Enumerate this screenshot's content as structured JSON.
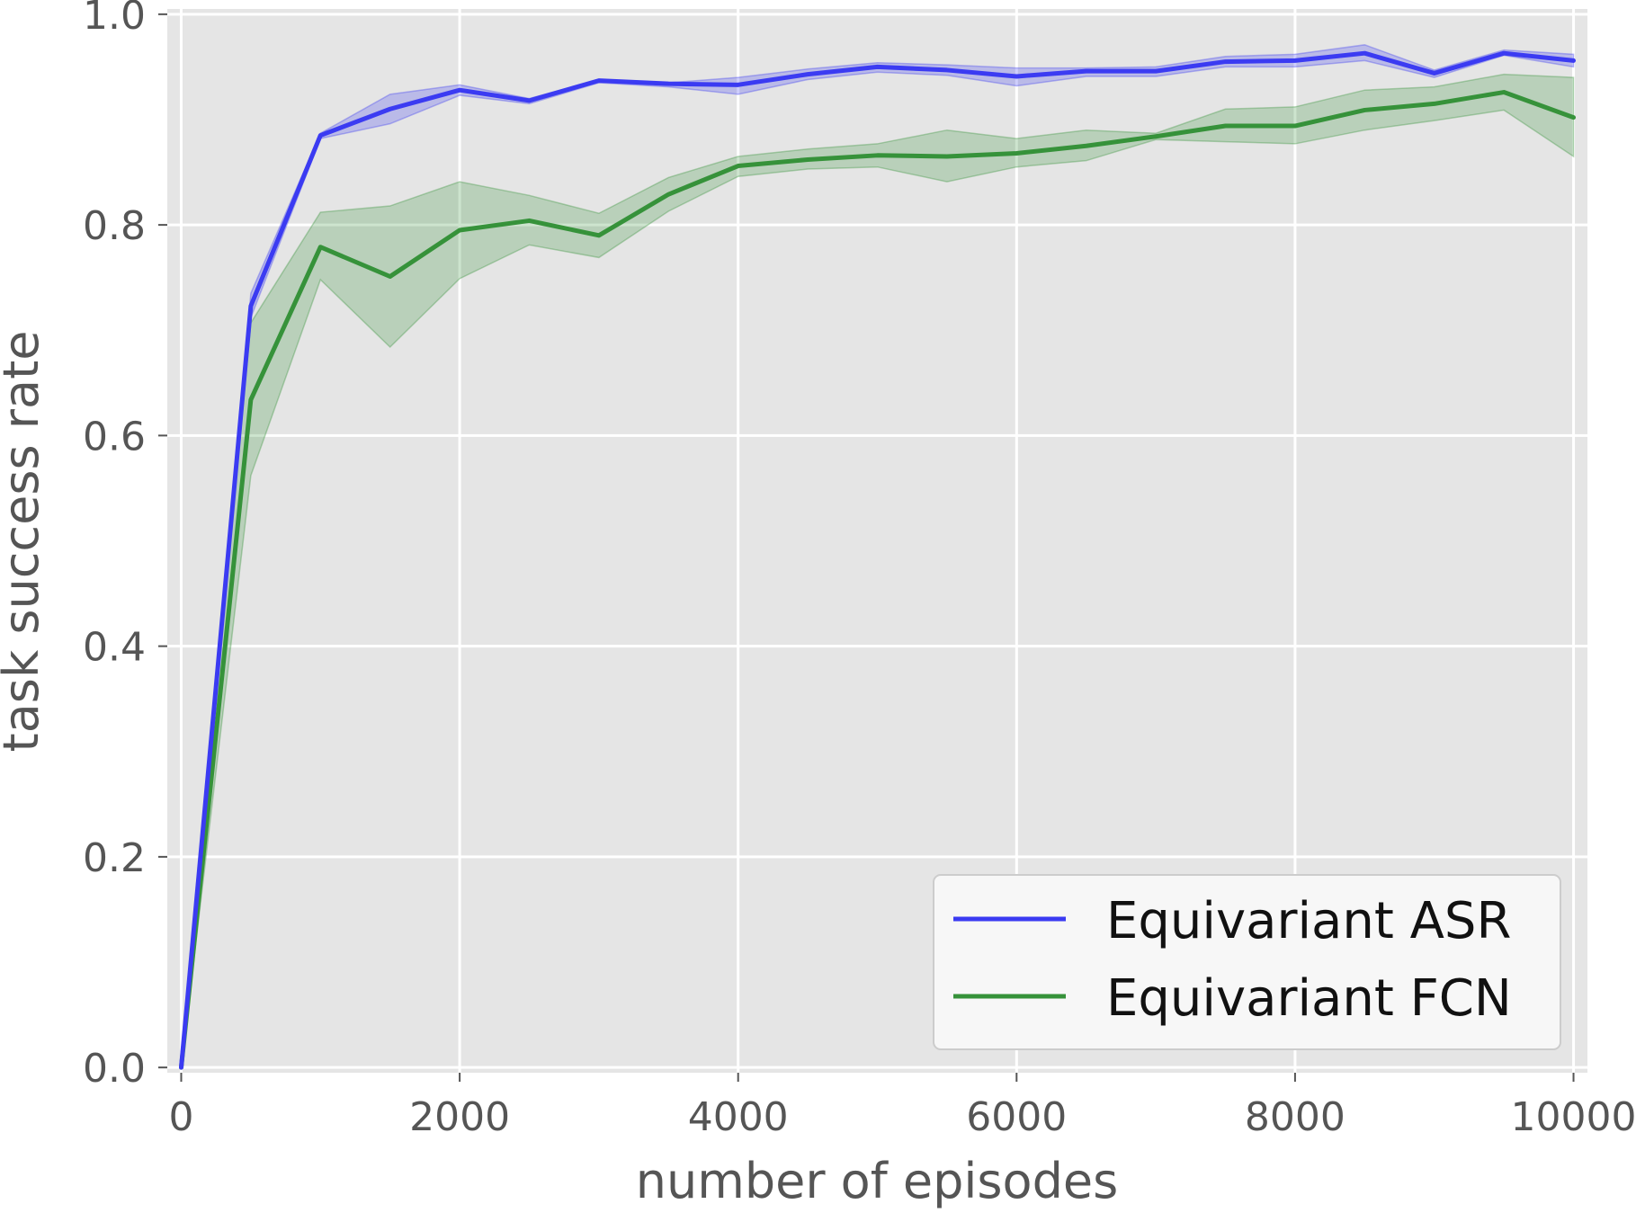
{
  "chart_data": {
    "type": "line",
    "xlabel": "number of episodes",
    "ylabel": "task success rate",
    "xlim": [
      -100,
      10100
    ],
    "ylim": [
      -0.005,
      1.005
    ],
    "xticks": [
      0,
      2000,
      4000,
      6000,
      8000,
      10000
    ],
    "xtick_labels": [
      "0",
      "2000",
      "4000",
      "6000",
      "8000",
      "10000"
    ],
    "yticks": [
      0.0,
      0.2,
      0.4,
      0.6,
      0.8,
      1.0
    ],
    "ytick_labels": [
      "0.0",
      "0.2",
      "0.4",
      "0.6",
      "0.8",
      "1.0"
    ],
    "grid": true,
    "legend_position": "lower-right",
    "x": [
      0,
      500,
      1000,
      1500,
      2000,
      2500,
      3000,
      3500,
      4000,
      4500,
      5000,
      5500,
      6000,
      6500,
      7000,
      7500,
      8000,
      8500,
      9000,
      9500,
      10000
    ],
    "series": [
      {
        "name": "Equivariant ASR",
        "color": "#3b3bf2",
        "values": [
          0.0,
          0.723,
          0.885,
          0.91,
          0.928,
          0.918,
          0.937,
          0.934,
          0.933,
          0.943,
          0.95,
          0.947,
          0.941,
          0.946,
          0.946,
          0.955,
          0.956,
          0.963,
          0.944,
          0.963,
          0.956
        ],
        "upper": [
          0.0,
          0.735,
          0.887,
          0.924,
          0.933,
          0.92,
          0.938,
          0.935,
          0.94,
          0.948,
          0.954,
          0.952,
          0.949,
          0.949,
          0.95,
          0.96,
          0.962,
          0.971,
          0.947,
          0.966,
          0.962
        ],
        "lower": [
          0.0,
          0.712,
          0.882,
          0.896,
          0.923,
          0.915,
          0.935,
          0.931,
          0.924,
          0.938,
          0.945,
          0.942,
          0.932,
          0.941,
          0.941,
          0.95,
          0.95,
          0.956,
          0.94,
          0.961,
          0.95
        ]
      },
      {
        "name": "Equivariant FCN",
        "color": "#36923a",
        "values": [
          0.0,
          0.634,
          0.779,
          0.751,
          0.795,
          0.804,
          0.79,
          0.829,
          0.856,
          0.862,
          0.866,
          0.865,
          0.868,
          0.875,
          0.884,
          0.894,
          0.894,
          0.909,
          0.915,
          0.926,
          0.902
        ],
        "upper": [
          0.0,
          0.707,
          0.812,
          0.818,
          0.841,
          0.828,
          0.811,
          0.845,
          0.865,
          0.872,
          0.877,
          0.89,
          0.882,
          0.89,
          0.887,
          0.91,
          0.912,
          0.928,
          0.931,
          0.943,
          0.94
        ],
        "lower": [
          0.0,
          0.562,
          0.748,
          0.684,
          0.749,
          0.781,
          0.769,
          0.813,
          0.846,
          0.853,
          0.855,
          0.841,
          0.855,
          0.861,
          0.881,
          0.879,
          0.877,
          0.89,
          0.899,
          0.909,
          0.865
        ]
      }
    ]
  }
}
